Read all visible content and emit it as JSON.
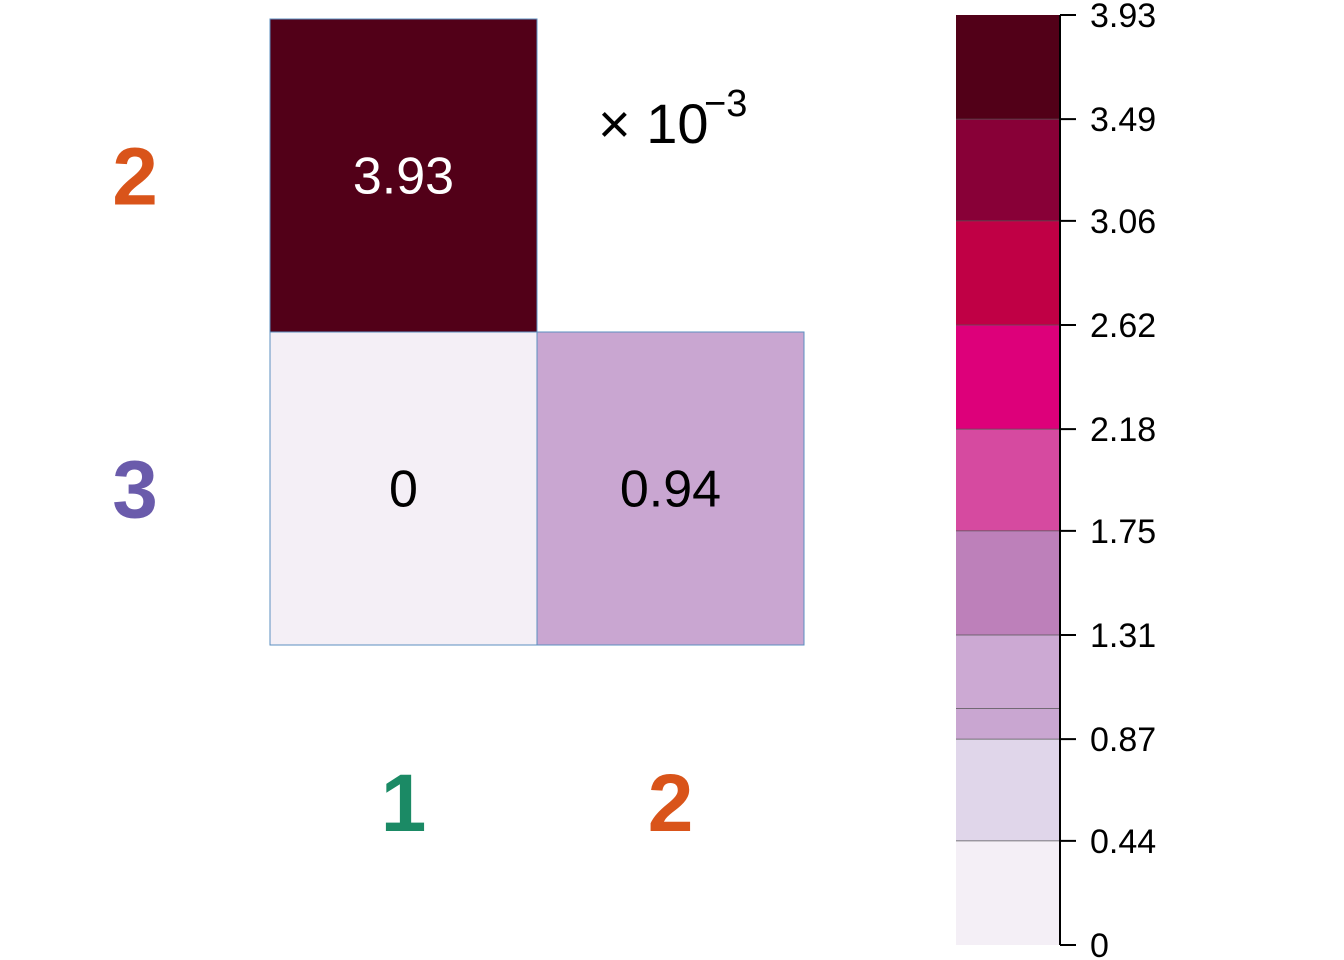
{
  "chart_data": {
    "type": "heatmap",
    "layout": "lower-triangular",
    "scale_note": {
      "prefix": "× 10",
      "exponent": "−3"
    },
    "rows": [
      {
        "label": "2",
        "color": "#d9541a"
      },
      {
        "label": "3",
        "color": "#6a5bab"
      }
    ],
    "columns": [
      {
        "label": "1",
        "color": "#1b8a65"
      },
      {
        "label": "2",
        "color": "#d9541a"
      }
    ],
    "cells": [
      {
        "row": 0,
        "col": 0,
        "value": 3.93,
        "label": "3.93"
      },
      {
        "row": 1,
        "col": 0,
        "value": 0,
        "label": "0"
      },
      {
        "row": 1,
        "col": 1,
        "value": 0.94,
        "label": "0.94"
      }
    ],
    "colorbar": {
      "range": [
        0,
        3.93
      ],
      "tick_values": [
        0,
        0.44,
        0.87,
        1.31,
        1.75,
        2.18,
        2.62,
        3.06,
        3.49,
        3.93
      ],
      "tick_labels": [
        "0",
        "0.44",
        "0.87",
        "1.31",
        "1.75",
        "2.18",
        "2.62",
        "3.06",
        "3.49",
        "3.93"
      ],
      "bins": [
        {
          "from": 0,
          "to": 0.44,
          "color": "#f4eff6"
        },
        {
          "from": 0.44,
          "to": 0.87,
          "color": "#e0d6ea"
        },
        {
          "from": 0.87,
          "to": 1.0,
          "color": "#c9a6d1"
        },
        {
          "from": 1.0,
          "to": 1.31,
          "color": "#cca9d3"
        },
        {
          "from": 1.31,
          "to": 1.75,
          "color": "#bd80ba"
        },
        {
          "from": 1.75,
          "to": 2.18,
          "color": "#d64aa0"
        },
        {
          "from": 2.18,
          "to": 2.62,
          "color": "#dd007a"
        },
        {
          "from": 2.62,
          "to": 3.06,
          "color": "#c00045"
        },
        {
          "from": 3.06,
          "to": 3.49,
          "color": "#880037"
        },
        {
          "from": 3.49,
          "to": 3.93,
          "color": "#520018"
        }
      ]
    },
    "cell_text_colors": {
      "dark": "#ffffff",
      "light": "#000000"
    },
    "grid_line_color": "#5b8fc0"
  }
}
